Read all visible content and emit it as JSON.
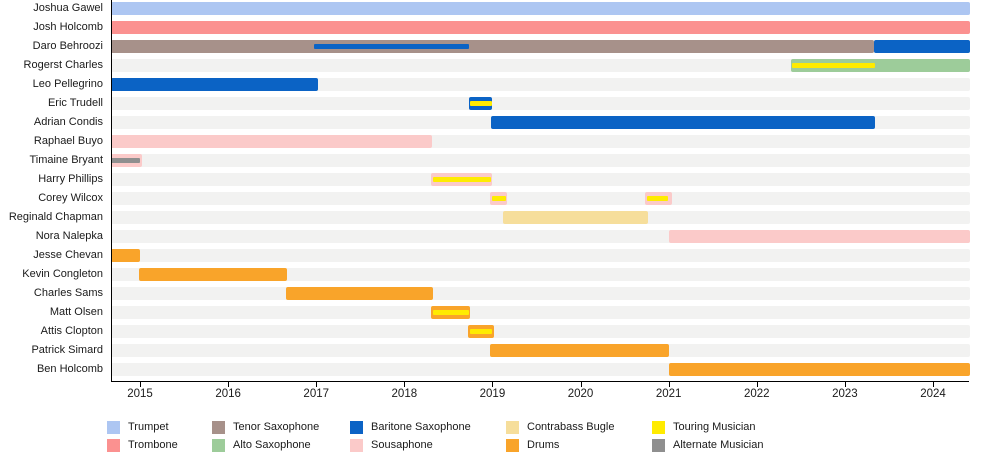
{
  "chart_data": {
    "type": "timeline",
    "title": "",
    "x_axis": {
      "range_start": 2014.67,
      "range_end": 2024.42,
      "ticks": [
        2015,
        2016,
        2017,
        2018,
        2019,
        2020,
        2021,
        2022,
        2023,
        2024
      ]
    },
    "roles": {
      "trumpet": {
        "label": "Trumpet",
        "color": "#adc6f2"
      },
      "trombone": {
        "label": "Trombone",
        "color": "#fb9190"
      },
      "tenor": {
        "label": "Tenor Saxophone",
        "color": "#a7918a"
      },
      "alto": {
        "label": "Alto Saxophone",
        "color": "#9dcc9a"
      },
      "baritone": {
        "label": "Baritone Saxophone",
        "color": "#0b63c5"
      },
      "sousaphone": {
        "label": "Sousaphone",
        "color": "#fbcac9"
      },
      "contrabass": {
        "label": "Contrabass Bugle",
        "color": "#f6de9b"
      },
      "drums": {
        "label": "Drums",
        "color": "#f9a42a"
      },
      "touring": {
        "label": "Touring Musician",
        "color": "#ffeb00"
      },
      "alternate": {
        "label": "Alternate Musician",
        "color": "#8f8f8f"
      }
    },
    "members": [
      {
        "name": "Joshua Gawel",
        "bars": [
          {
            "role": "trumpet",
            "start": 2014.67,
            "end": 2024.42
          }
        ]
      },
      {
        "name": "Josh Holcomb",
        "bars": [
          {
            "role": "trombone",
            "start": 2014.67,
            "end": 2024.42
          }
        ]
      },
      {
        "name": "Daro Behroozi",
        "bars": [
          {
            "role": "tenor",
            "start": 2014.67,
            "end": 2023.33,
            "stripes": [
              {
                "role": "baritone",
                "start": 2016.97,
                "end": 2018.73
              }
            ]
          },
          {
            "role": "baritone",
            "start": 2023.33,
            "end": 2024.42
          }
        ]
      },
      {
        "name": "Rogerst Charles",
        "bars": [
          {
            "role": "alto",
            "start": 2022.39,
            "end": 2024.42,
            "stripes": [
              {
                "role": "touring",
                "start": 2022.4,
                "end": 2023.34
              }
            ]
          }
        ]
      },
      {
        "name": "Leo Pellegrino",
        "bars": [
          {
            "role": "baritone",
            "start": 2014.67,
            "end": 2017.02
          }
        ]
      },
      {
        "name": "Eric Trudell",
        "bars": [
          {
            "role": "baritone",
            "start": 2018.73,
            "end": 2019.0,
            "stripes": [
              {
                "role": "touring",
                "start": 2018.74,
                "end": 2018.99
              }
            ]
          }
        ]
      },
      {
        "name": "Adrian Condis",
        "bars": [
          {
            "role": "baritone",
            "start": 2018.98,
            "end": 2023.34
          }
        ]
      },
      {
        "name": "Raphael Buyo",
        "bars": [
          {
            "role": "sousaphone",
            "start": 2014.67,
            "end": 2018.31
          }
        ]
      },
      {
        "name": "Timaine Bryant",
        "bars": [
          {
            "role": "sousaphone",
            "start": 2014.67,
            "end": 2015.02,
            "stripes": [
              {
                "role": "alternate",
                "start": 2014.67,
                "end": 2015.0
              }
            ]
          }
        ]
      },
      {
        "name": "Harry Phillips",
        "bars": [
          {
            "role": "sousaphone",
            "start": 2018.3,
            "end": 2019.0,
            "stripes": [
              {
                "role": "touring",
                "start": 2018.32,
                "end": 2018.98
              }
            ]
          }
        ]
      },
      {
        "name": "Corey Wilcox",
        "bars": [
          {
            "role": "sousaphone",
            "start": 2018.97,
            "end": 2019.17,
            "stripes": [
              {
                "role": "touring",
                "start": 2018.99,
                "end": 2019.15
              }
            ]
          },
          {
            "role": "sousaphone",
            "start": 2020.73,
            "end": 2021.04,
            "stripes": [
              {
                "role": "touring",
                "start": 2020.75,
                "end": 2020.99
              }
            ]
          }
        ]
      },
      {
        "name": "Reginald Chapman",
        "bars": [
          {
            "role": "contrabass",
            "start": 2019.12,
            "end": 2020.76
          }
        ]
      },
      {
        "name": "Nora Nalepka",
        "bars": [
          {
            "role": "sousaphone",
            "start": 2021.0,
            "end": 2024.42
          }
        ]
      },
      {
        "name": "Jesse Chevan",
        "bars": [
          {
            "role": "drums",
            "start": 2014.67,
            "end": 2015.0
          }
        ]
      },
      {
        "name": "Kevin Congleton",
        "bars": [
          {
            "role": "drums",
            "start": 2014.99,
            "end": 2016.67
          }
        ]
      },
      {
        "name": "Charles Sams",
        "bars": [
          {
            "role": "drums",
            "start": 2016.66,
            "end": 2018.32
          }
        ]
      },
      {
        "name": "Matt Olsen",
        "bars": [
          {
            "role": "drums",
            "start": 2018.3,
            "end": 2018.75,
            "stripes": [
              {
                "role": "touring",
                "start": 2018.32,
                "end": 2018.73
              }
            ]
          }
        ]
      },
      {
        "name": "Attis Clopton",
        "bars": [
          {
            "role": "drums",
            "start": 2018.72,
            "end": 2019.02,
            "stripes": [
              {
                "role": "touring",
                "start": 2018.74,
                "end": 2019.0
              }
            ]
          }
        ]
      },
      {
        "name": "Patrick Simard",
        "bars": [
          {
            "role": "drums",
            "start": 2018.97,
            "end": 2021.0
          }
        ]
      },
      {
        "name": "Ben Holcomb",
        "bars": [
          {
            "role": "drums",
            "start": 2021.0,
            "end": 2024.42
          }
        ]
      }
    ],
    "legend": {
      "position": "bottom",
      "items": [
        {
          "role": "trumpet",
          "col": 0,
          "row": 0
        },
        {
          "role": "trombone",
          "col": 0,
          "row": 1
        },
        {
          "role": "tenor",
          "col": 1,
          "row": 0
        },
        {
          "role": "alto",
          "col": 1,
          "row": 1
        },
        {
          "role": "baritone",
          "col": 2,
          "row": 0
        },
        {
          "role": "sousaphone",
          "col": 2,
          "row": 1
        },
        {
          "role": "contrabass",
          "col": 3,
          "row": 0
        },
        {
          "role": "drums",
          "col": 3,
          "row": 1
        },
        {
          "role": "touring",
          "col": 4,
          "row": 0
        },
        {
          "role": "alternate",
          "col": 4,
          "row": 1
        }
      ]
    },
    "grid": false,
    "row_background_color": "#f2f2f1"
  }
}
